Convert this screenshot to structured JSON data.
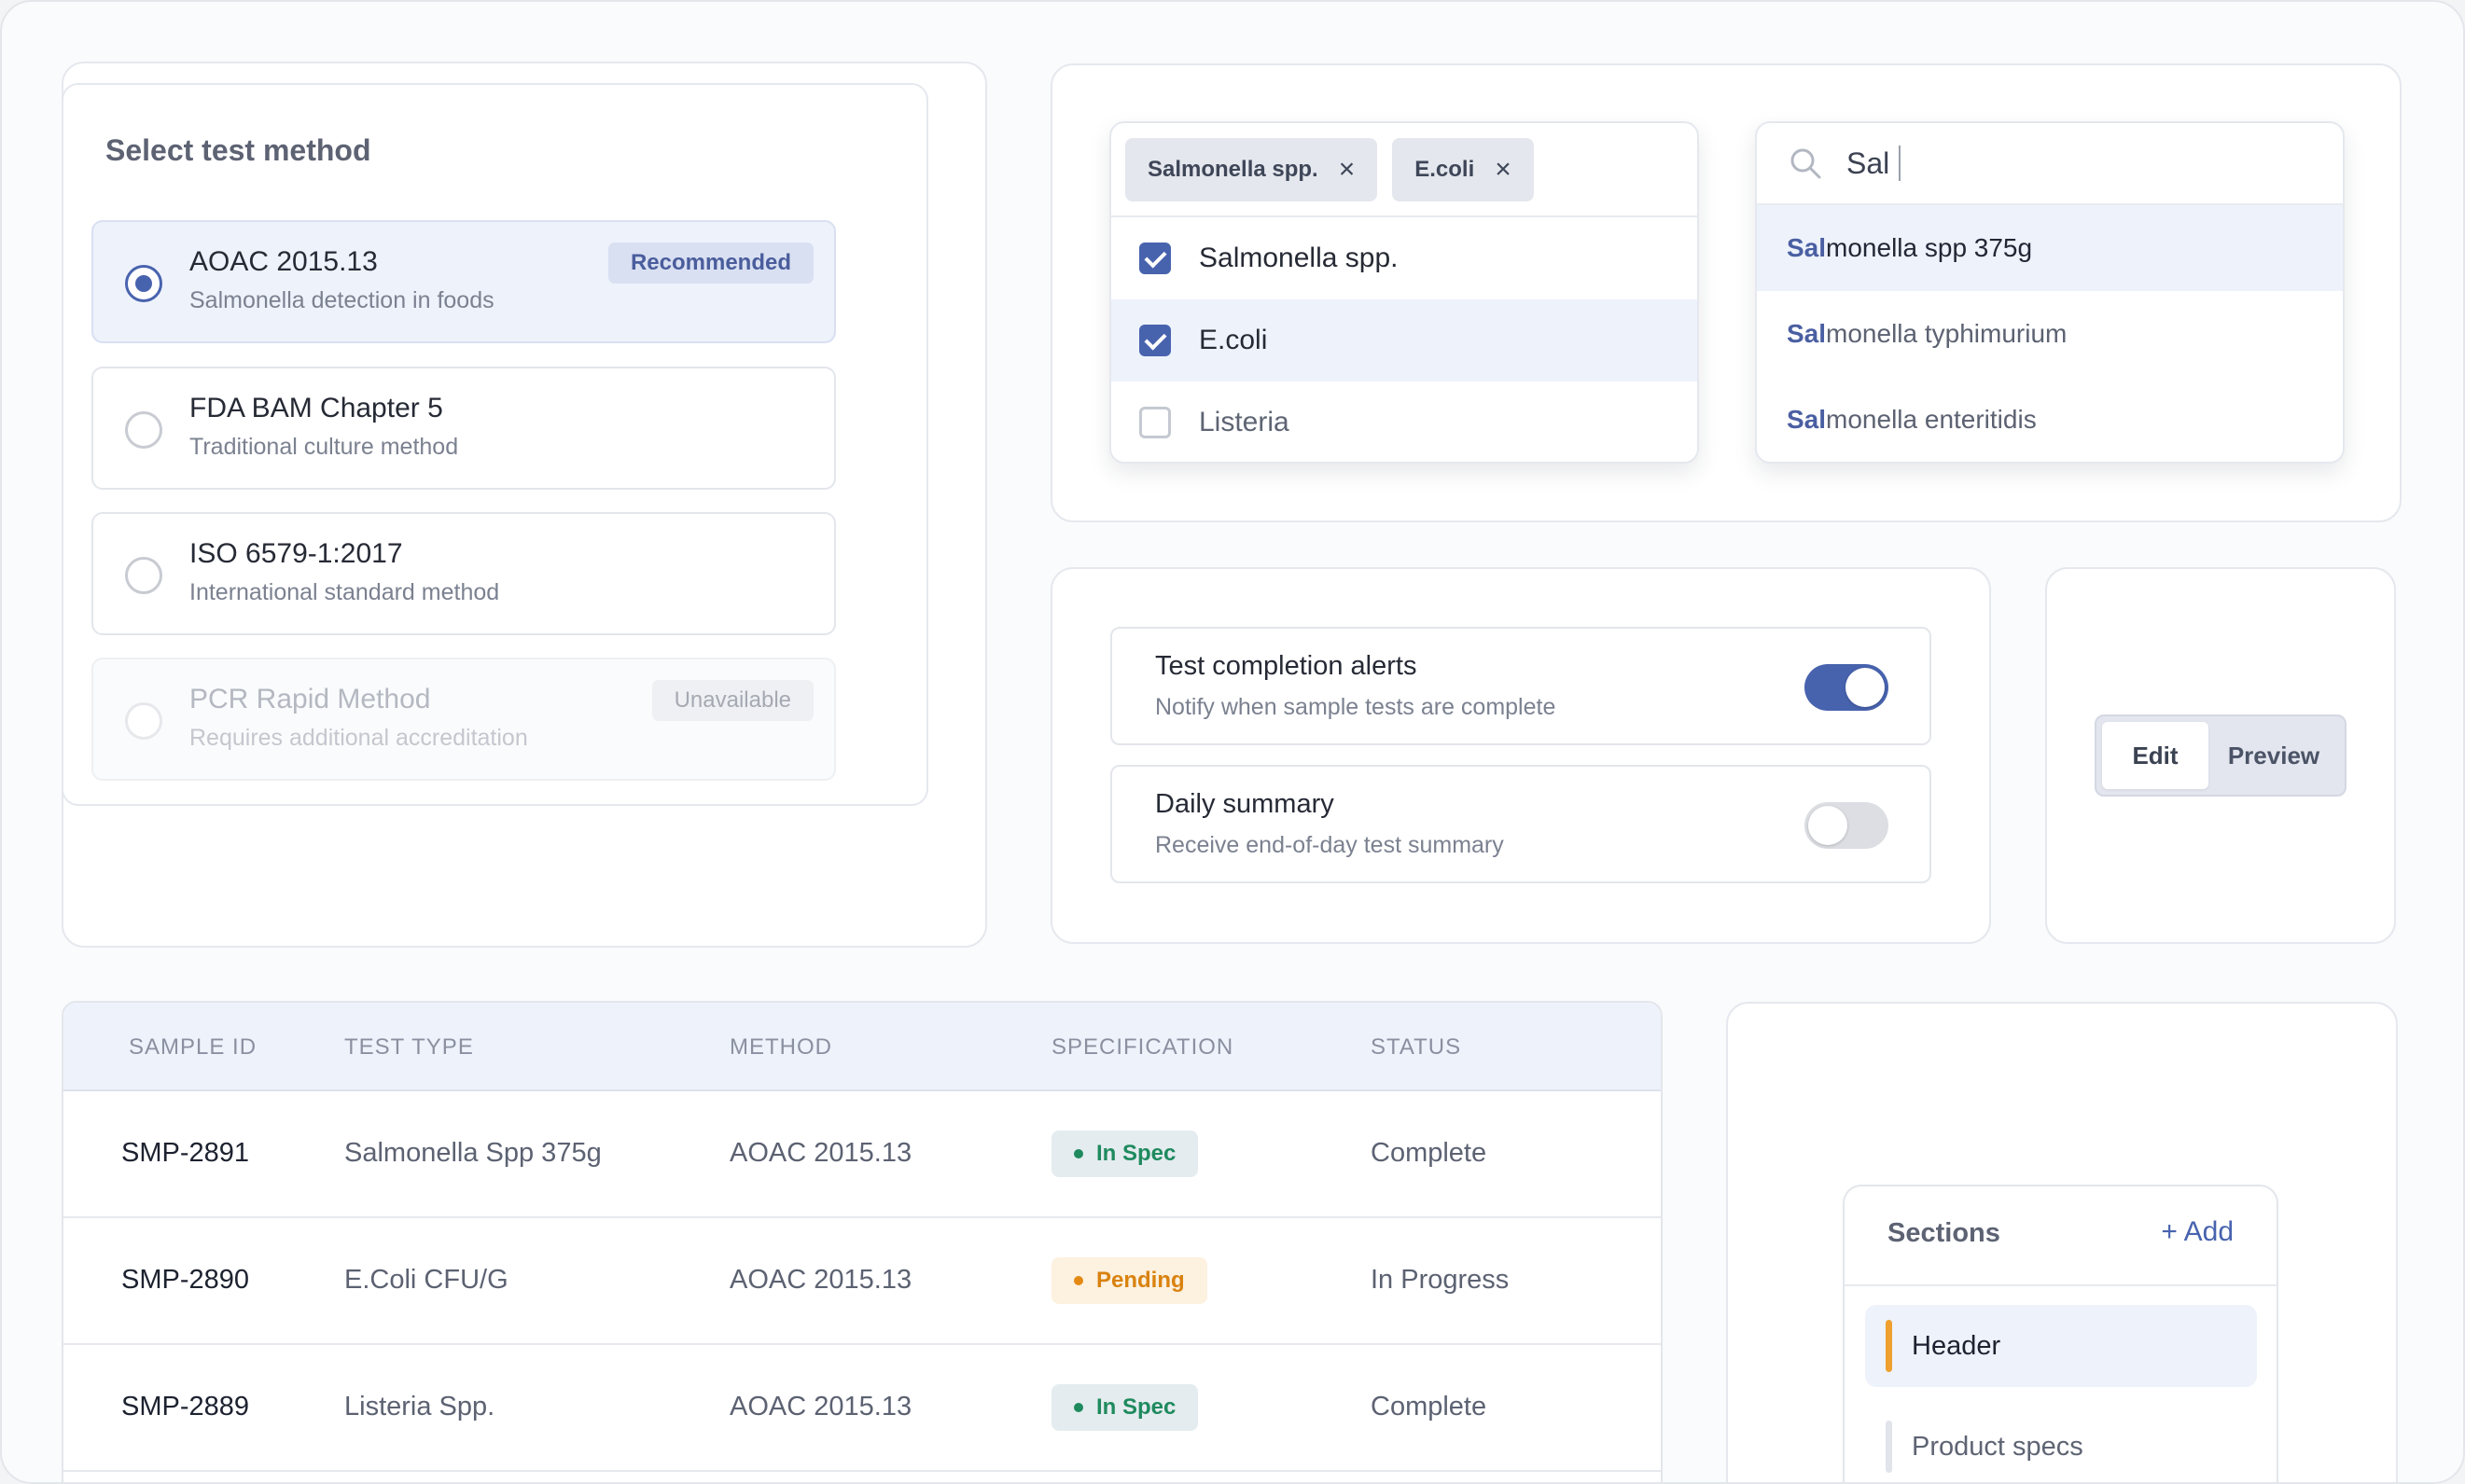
{
  "method_select": {
    "title": "Select test method",
    "options": [
      {
        "name": "AOAC 2015.13",
        "desc": "Salmonella detection in foods",
        "badge": "Recommended",
        "state": "selected"
      },
      {
        "name": "FDA BAM Chapter 5",
        "desc": "Traditional culture method",
        "state": "default"
      },
      {
        "name": "ISO 6579-1:2017",
        "desc": "International standard method",
        "state": "default"
      },
      {
        "name": "PCR Rapid Method",
        "desc": "Requires additional accreditation",
        "badge": "Unavailable",
        "state": "disabled"
      }
    ]
  },
  "multiselect": {
    "chips": [
      "Salmonella spp.",
      "E.coli"
    ],
    "chip_remove_glyph": "×",
    "items": [
      {
        "label": "Salmonella spp.",
        "checked": true
      },
      {
        "label": "E.coli",
        "checked": true
      },
      {
        "label": "Listeria",
        "checked": false
      }
    ]
  },
  "search": {
    "query": "Sal",
    "results": [
      {
        "match": "Sal",
        "rest": "monella spp 375g"
      },
      {
        "match": "Sal",
        "rest": "monella typhimurium"
      },
      {
        "match": "Sal",
        "rest": "monella enteritidis"
      }
    ]
  },
  "notifications": [
    {
      "title": "Test completion alerts",
      "desc": "Notify when sample tests are complete",
      "enabled": true
    },
    {
      "title": "Daily summary",
      "desc": "Receive end-of-day test summary",
      "enabled": false
    }
  ],
  "segmented": {
    "options": [
      "Edit",
      "Preview"
    ],
    "active": "Edit"
  },
  "table": {
    "headers": [
      "SAMPLE ID",
      "TEST TYPE",
      "METHOD",
      "SPECIFICATION",
      "STATUS"
    ],
    "rows": [
      {
        "id": "SMP-2891",
        "type": "Salmonella Spp 375g",
        "method": "AOAC 2015.13",
        "spec": "In Spec",
        "spec_kind": "ok",
        "status": "Complete"
      },
      {
        "id": "SMP-2890",
        "type": "E.Coli CFU/G",
        "method": "AOAC 2015.13",
        "spec": "Pending",
        "spec_kind": "pending",
        "status": "In Progress"
      },
      {
        "id": "SMP-2889",
        "type": "Listeria Spp.",
        "method": "AOAC 2015.13",
        "spec": "In Spec",
        "spec_kind": "ok",
        "status": "Complete"
      }
    ]
  },
  "sections": {
    "title": "Sections",
    "add_label": "+ Add",
    "items": [
      {
        "label": "Header",
        "active": true
      },
      {
        "label": "Product specs",
        "active": false
      }
    ]
  },
  "colors": {
    "accent": "#4863ae",
    "success": "#1f8a5e",
    "warning": "#d9820f",
    "section_marker": "#efa02f"
  }
}
